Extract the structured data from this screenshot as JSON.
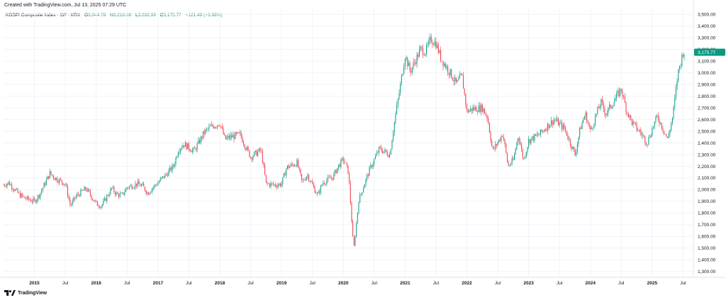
{
  "created_text": "Created with TradingView.com, Jul 13, 2025 07:29 UTC",
  "legend": {
    "symbol": "KOSPI Composite Index · 1W · KRX",
    "open_label": "O",
    "open": "3,044.78",
    "high_label": "H",
    "high": "3,216.69",
    "low_label": "L",
    "low": "3,032.99",
    "close_label": "C",
    "close": "3,175.77",
    "change": "+121.49 (+3.98%)"
  },
  "footer": {
    "brand": "TradingView",
    "logo_icon": "tradingview-logo-icon"
  },
  "colors": {
    "up": "#089981",
    "down": "#f23645",
    "grid": "#f0f3fa",
    "text": "#131722"
  },
  "chart_data": {
    "type": "candlestick",
    "title": "",
    "xlabel": "",
    "ylabel": "",
    "ylim": [
      1250,
      3550
    ],
    "y_ticks": [
      "1,300.00",
      "1,400.00",
      "1,500.00",
      "1,600.00",
      "1,700.00",
      "1,800.00",
      "1,900.00",
      "2,000.00",
      "2,100.00",
      "2,200.00",
      "2,300.00",
      "2,400.00",
      "2,500.00",
      "2,600.00",
      "2,700.00",
      "2,800.00",
      "2,900.00",
      "3,000.00",
      "3,100.00",
      "3,200.00",
      "3,300.00",
      "3,400.00",
      "3,500.00"
    ],
    "x_range": [
      "2014-07",
      "2025-09"
    ],
    "x_ticks": [
      {
        "label": "2015",
        "date": "2015-01"
      },
      {
        "label": "Jul",
        "date": "2015-07"
      },
      {
        "label": "2016",
        "date": "2016-01"
      },
      {
        "label": "Jul",
        "date": "2016-07"
      },
      {
        "label": "2017",
        "date": "2017-01"
      },
      {
        "label": "Jul",
        "date": "2017-07"
      },
      {
        "label": "2018",
        "date": "2018-01"
      },
      {
        "label": "Jul",
        "date": "2018-07"
      },
      {
        "label": "2019",
        "date": "2019-01"
      },
      {
        "label": "Jul",
        "date": "2019-07"
      },
      {
        "label": "2020",
        "date": "2020-01"
      },
      {
        "label": "Jul",
        "date": "2020-07"
      },
      {
        "label": "2021",
        "date": "2021-01"
      },
      {
        "label": "Jul",
        "date": "2021-07"
      },
      {
        "label": "2022",
        "date": "2022-01"
      },
      {
        "label": "Jul",
        "date": "2022-07"
      },
      {
        "label": "2023",
        "date": "2023-01"
      },
      {
        "label": "Jul",
        "date": "2023-07"
      },
      {
        "label": "2024",
        "date": "2024-01"
      },
      {
        "label": "Jul",
        "date": "2024-07"
      },
      {
        "label": "2025",
        "date": "2025-01"
      },
      {
        "label": "Jul",
        "date": "2025-07"
      }
    ],
    "last_price_label": "3,175.77",
    "last_price": 3175.77,
    "grid": true,
    "price_path": [
      {
        "date": "2014-07",
        "close": 2040
      },
      {
        "date": "2014-08",
        "close": 2060
      },
      {
        "date": "2014-10",
        "close": 1960
      },
      {
        "date": "2014-11",
        "close": 1930
      },
      {
        "date": "2015-01",
        "close": 1900
      },
      {
        "date": "2015-02",
        "close": 1960
      },
      {
        "date": "2015-04",
        "close": 2140
      },
      {
        "date": "2015-05",
        "close": 2100
      },
      {
        "date": "2015-07",
        "close": 2050
      },
      {
        "date": "2015-08",
        "close": 1860
      },
      {
        "date": "2015-09",
        "close": 1940
      },
      {
        "date": "2015-11",
        "close": 2010
      },
      {
        "date": "2016-01",
        "close": 1880
      },
      {
        "date": "2016-02",
        "close": 1860
      },
      {
        "date": "2016-04",
        "close": 2010
      },
      {
        "date": "2016-05",
        "close": 1960
      },
      {
        "date": "2016-06",
        "close": 1950
      },
      {
        "date": "2016-07",
        "close": 2020
      },
      {
        "date": "2016-09",
        "close": 2050
      },
      {
        "date": "2016-10",
        "close": 2030
      },
      {
        "date": "2016-11",
        "close": 1970
      },
      {
        "date": "2016-12",
        "close": 2020
      },
      {
        "date": "2017-01",
        "close": 2060
      },
      {
        "date": "2017-03",
        "close": 2150
      },
      {
        "date": "2017-04",
        "close": 2200
      },
      {
        "date": "2017-05",
        "close": 2350
      },
      {
        "date": "2017-06",
        "close": 2390
      },
      {
        "date": "2017-08",
        "close": 2330
      },
      {
        "date": "2017-10",
        "close": 2490
      },
      {
        "date": "2017-11",
        "close": 2530
      },
      {
        "date": "2018-01",
        "close": 2570
      },
      {
        "date": "2018-02",
        "close": 2430
      },
      {
        "date": "2018-03",
        "close": 2450
      },
      {
        "date": "2018-05",
        "close": 2470
      },
      {
        "date": "2018-06",
        "close": 2370
      },
      {
        "date": "2018-07",
        "close": 2280
      },
      {
        "date": "2018-09",
        "close": 2340
      },
      {
        "date": "2018-10",
        "close": 2050
      },
      {
        "date": "2018-12",
        "close": 2040
      },
      {
        "date": "2019-01",
        "close": 2050
      },
      {
        "date": "2019-02",
        "close": 2190
      },
      {
        "date": "2019-04",
        "close": 2230
      },
      {
        "date": "2019-05",
        "close": 2060
      },
      {
        "date": "2019-06",
        "close": 2130
      },
      {
        "date": "2019-08",
        "close": 1950
      },
      {
        "date": "2019-09",
        "close": 2060
      },
      {
        "date": "2019-11",
        "close": 2110
      },
      {
        "date": "2019-12",
        "close": 2200
      },
      {
        "date": "2020-01",
        "close": 2260
      },
      {
        "date": "2020-02",
        "close": 2150
      },
      {
        "date": "2020-03",
        "close": 1480
      },
      {
        "date": "2020-04",
        "close": 1910
      },
      {
        "date": "2020-06",
        "close": 2160
      },
      {
        "date": "2020-08",
        "close": 2350
      },
      {
        "date": "2020-10",
        "close": 2300
      },
      {
        "date": "2020-11",
        "close": 2600
      },
      {
        "date": "2020-12",
        "close": 2870
      },
      {
        "date": "2021-01",
        "close": 3150
      },
      {
        "date": "2021-02",
        "close": 3010
      },
      {
        "date": "2021-04",
        "close": 3200
      },
      {
        "date": "2021-05",
        "close": 3180
      },
      {
        "date": "2021-06",
        "close": 3290
      },
      {
        "date": "2021-07",
        "close": 3250
      },
      {
        "date": "2021-08",
        "close": 3120
      },
      {
        "date": "2021-10",
        "close": 2980
      },
      {
        "date": "2021-11",
        "close": 2900
      },
      {
        "date": "2021-12",
        "close": 2980
      },
      {
        "date": "2022-01",
        "close": 2670
      },
      {
        "date": "2022-02",
        "close": 2690
      },
      {
        "date": "2022-04",
        "close": 2700
      },
      {
        "date": "2022-05",
        "close": 2620
      },
      {
        "date": "2022-06",
        "close": 2330
      },
      {
        "date": "2022-08",
        "close": 2480
      },
      {
        "date": "2022-09",
        "close": 2200
      },
      {
        "date": "2022-10",
        "close": 2250
      },
      {
        "date": "2022-11",
        "close": 2470
      },
      {
        "date": "2022-12",
        "close": 2250
      },
      {
        "date": "2023-01",
        "close": 2420
      },
      {
        "date": "2023-03",
        "close": 2470
      },
      {
        "date": "2023-05",
        "close": 2560
      },
      {
        "date": "2023-06",
        "close": 2600
      },
      {
        "date": "2023-08",
        "close": 2520
      },
      {
        "date": "2023-10",
        "close": 2300
      },
      {
        "date": "2023-11",
        "close": 2520
      },
      {
        "date": "2023-12",
        "close": 2650
      },
      {
        "date": "2024-01",
        "close": 2500
      },
      {
        "date": "2024-03",
        "close": 2750
      },
      {
        "date": "2024-04",
        "close": 2650
      },
      {
        "date": "2024-06",
        "close": 2790
      },
      {
        "date": "2024-07",
        "close": 2860
      },
      {
        "date": "2024-08",
        "close": 2680
      },
      {
        "date": "2024-09",
        "close": 2580
      },
      {
        "date": "2024-11",
        "close": 2470
      },
      {
        "date": "2024-12",
        "close": 2400
      },
      {
        "date": "2025-01",
        "close": 2520
      },
      {
        "date": "2025-02",
        "close": 2630
      },
      {
        "date": "2025-04",
        "close": 2430
      },
      {
        "date": "2025-05",
        "close": 2630
      },
      {
        "date": "2025-06",
        "close": 3000
      },
      {
        "date": "2025-07",
        "close": 3176
      }
    ]
  }
}
